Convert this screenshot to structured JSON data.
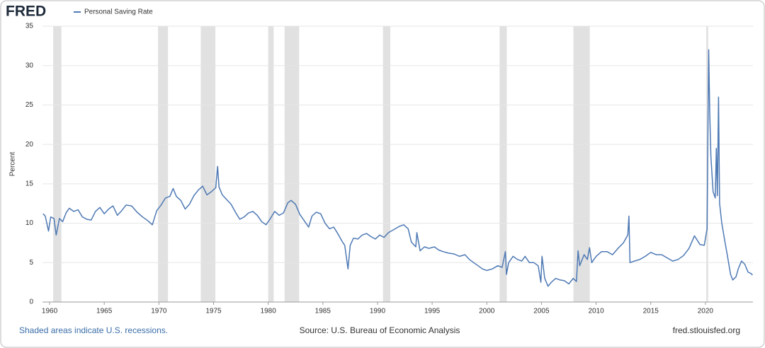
{
  "chart_data": {
    "type": "line",
    "logo": "FRED",
    "y_label": "Percent",
    "note": "Shaded areas indicate U.S. recessions.",
    "source": "Source: U.S. Bureau of Economic Analysis",
    "site": "fred.stlouisfed.org",
    "x": [
      1959.4,
      1959.6,
      1959.9,
      1960.1,
      1960.4,
      1960.6,
      1960.9,
      1961.2,
      1961.5,
      1961.8,
      1962.2,
      1962.6,
      1963.0,
      1963.4,
      1963.8,
      1964.2,
      1964.6,
      1965.0,
      1965.4,
      1965.8,
      1966.2,
      1966.6,
      1967.0,
      1967.5,
      1968.0,
      1968.5,
      1969.0,
      1969.4,
      1969.8,
      1970.2,
      1970.6,
      1971.0,
      1971.3,
      1971.6,
      1972.0,
      1972.4,
      1972.8,
      1973.2,
      1973.6,
      1974.0,
      1974.4,
      1974.8,
      1975.2,
      1975.37,
      1975.5,
      1975.8,
      1976.2,
      1976.6,
      1977.0,
      1977.4,
      1977.8,
      1978.2,
      1978.6,
      1979.0,
      1979.4,
      1979.8,
      1980.2,
      1980.6,
      1981.0,
      1981.4,
      1981.8,
      1982.1,
      1982.5,
      1982.9,
      1983.3,
      1983.7,
      1984.0,
      1984.4,
      1984.8,
      1985.2,
      1985.6,
      1986.0,
      1986.4,
      1986.8,
      1987.0,
      1987.3,
      1987.5,
      1987.8,
      1988.2,
      1988.6,
      1989.0,
      1989.4,
      1989.8,
      1990.2,
      1990.6,
      1991.0,
      1991.5,
      1992.0,
      1992.4,
      1992.8,
      1993.1,
      1993.5,
      1993.6,
      1993.9,
      1994.3,
      1994.7,
      1995.2,
      1995.6,
      1996.0,
      1996.5,
      1997.0,
      1997.5,
      1998.0,
      1998.4,
      1998.8,
      1999.2,
      1999.6,
      2000.0,
      2000.5,
      2001.0,
      2001.4,
      2001.7,
      2001.8,
      2002.0,
      2002.4,
      2002.8,
      2003.2,
      2003.5,
      2003.9,
      2004.3,
      2004.7,
      2004.95,
      2005.05,
      2005.3,
      2005.6,
      2005.9,
      2006.3,
      2006.7,
      2007.1,
      2007.5,
      2007.9,
      2008.2,
      2008.35,
      2008.5,
      2008.9,
      2009.2,
      2009.4,
      2009.6,
      2010.0,
      2010.5,
      2011.0,
      2011.5,
      2012.0,
      2012.5,
      2012.9,
      2013.0,
      2013.1,
      2013.5,
      2014.0,
      2014.5,
      2015.0,
      2015.5,
      2016.0,
      2016.5,
      2017.0,
      2017.5,
      2018.0,
      2018.5,
      2019.0,
      2019.5,
      2019.9,
      2020.15,
      2020.3,
      2020.4,
      2020.5,
      2020.7,
      2020.9,
      2021.0,
      2021.1,
      2021.2,
      2021.3,
      2021.5,
      2021.8,
      2022.0,
      2022.3,
      2022.5,
      2022.8,
      2023.0,
      2023.3,
      2023.6,
      2023.9,
      2024.2,
      2024.3
    ],
    "series": [
      {
        "name": "Personal Saving Rate",
        "color": "#4e79b4",
        "values": [
          11.2,
          10.9,
          9.0,
          10.8,
          10.6,
          8.5,
          10.6,
          10.2,
          11.3,
          11.9,
          11.5,
          11.7,
          10.8,
          10.5,
          10.4,
          11.5,
          12.0,
          11.2,
          11.8,
          12.2,
          11.0,
          11.6,
          12.3,
          12.2,
          11.4,
          10.8,
          10.3,
          9.8,
          11.6,
          12.3,
          13.2,
          13.4,
          14.4,
          13.4,
          12.9,
          11.8,
          12.4,
          13.5,
          14.2,
          14.7,
          13.6,
          14.0,
          14.5,
          17.2,
          14.6,
          13.6,
          13.0,
          12.4,
          11.4,
          10.5,
          10.8,
          11.3,
          11.5,
          11.0,
          10.2,
          9.8,
          10.6,
          11.5,
          11.0,
          11.3,
          12.6,
          12.9,
          12.4,
          11.1,
          10.3,
          9.5,
          10.9,
          11.4,
          11.2,
          10.0,
          9.3,
          9.5,
          8.6,
          7.6,
          7.2,
          4.2,
          7.2,
          8.1,
          8.0,
          8.5,
          8.7,
          8.3,
          8.0,
          8.5,
          8.2,
          8.8,
          9.2,
          9.6,
          9.8,
          9.3,
          7.6,
          7.0,
          8.8,
          6.5,
          7.0,
          6.8,
          7.0,
          6.6,
          6.4,
          6.2,
          6.1,
          5.8,
          6.0,
          5.4,
          5.0,
          4.6,
          4.2,
          4.0,
          4.2,
          4.6,
          4.4,
          6.4,
          3.5,
          5.0,
          5.8,
          5.4,
          5.2,
          5.8,
          5.0,
          5.0,
          4.6,
          2.5,
          5.8,
          3.0,
          2.0,
          2.5,
          3.0,
          2.8,
          2.7,
          2.3,
          3.0,
          2.6,
          6.5,
          4.6,
          6.0,
          5.4,
          6.9,
          5.0,
          5.8,
          6.4,
          6.4,
          6.0,
          6.8,
          7.5,
          8.5,
          10.9,
          5.0,
          5.2,
          5.4,
          5.8,
          6.3,
          6.0,
          6.0,
          5.6,
          5.2,
          5.4,
          5.9,
          6.8,
          8.4,
          7.3,
          7.2,
          9.3,
          32.0,
          24.0,
          18.5,
          14.0,
          13.2,
          19.5,
          13.5,
          26.0,
          12.5,
          10.0,
          7.5,
          6.0,
          3.5,
          2.8,
          3.2,
          4.2,
          5.2,
          4.8,
          3.8,
          3.6,
          3.4
        ]
      }
    ],
    "recessions": [
      [
        1960.33,
        1961.08
      ],
      [
        1969.92,
        1970.83
      ],
      [
        1973.83,
        1975.17
      ],
      [
        1980.0,
        1980.5
      ],
      [
        1981.5,
        1982.83
      ],
      [
        1990.5,
        1991.17
      ],
      [
        2001.17,
        2001.83
      ],
      [
        2007.92,
        2009.42
      ],
      [
        2020.08,
        2020.25
      ]
    ],
    "recession_color": "#e1e1e1",
    "xlim": [
      1959.35,
      2024.35
    ],
    "xticks": [
      1960,
      1965,
      1970,
      1975,
      1980,
      1985,
      1990,
      1995,
      2000,
      2005,
      2010,
      2015,
      2020
    ],
    "ylim": [
      0,
      35
    ],
    "yticks": [
      0,
      5,
      10,
      15,
      20,
      25,
      30,
      35
    ],
    "grid": true
  }
}
